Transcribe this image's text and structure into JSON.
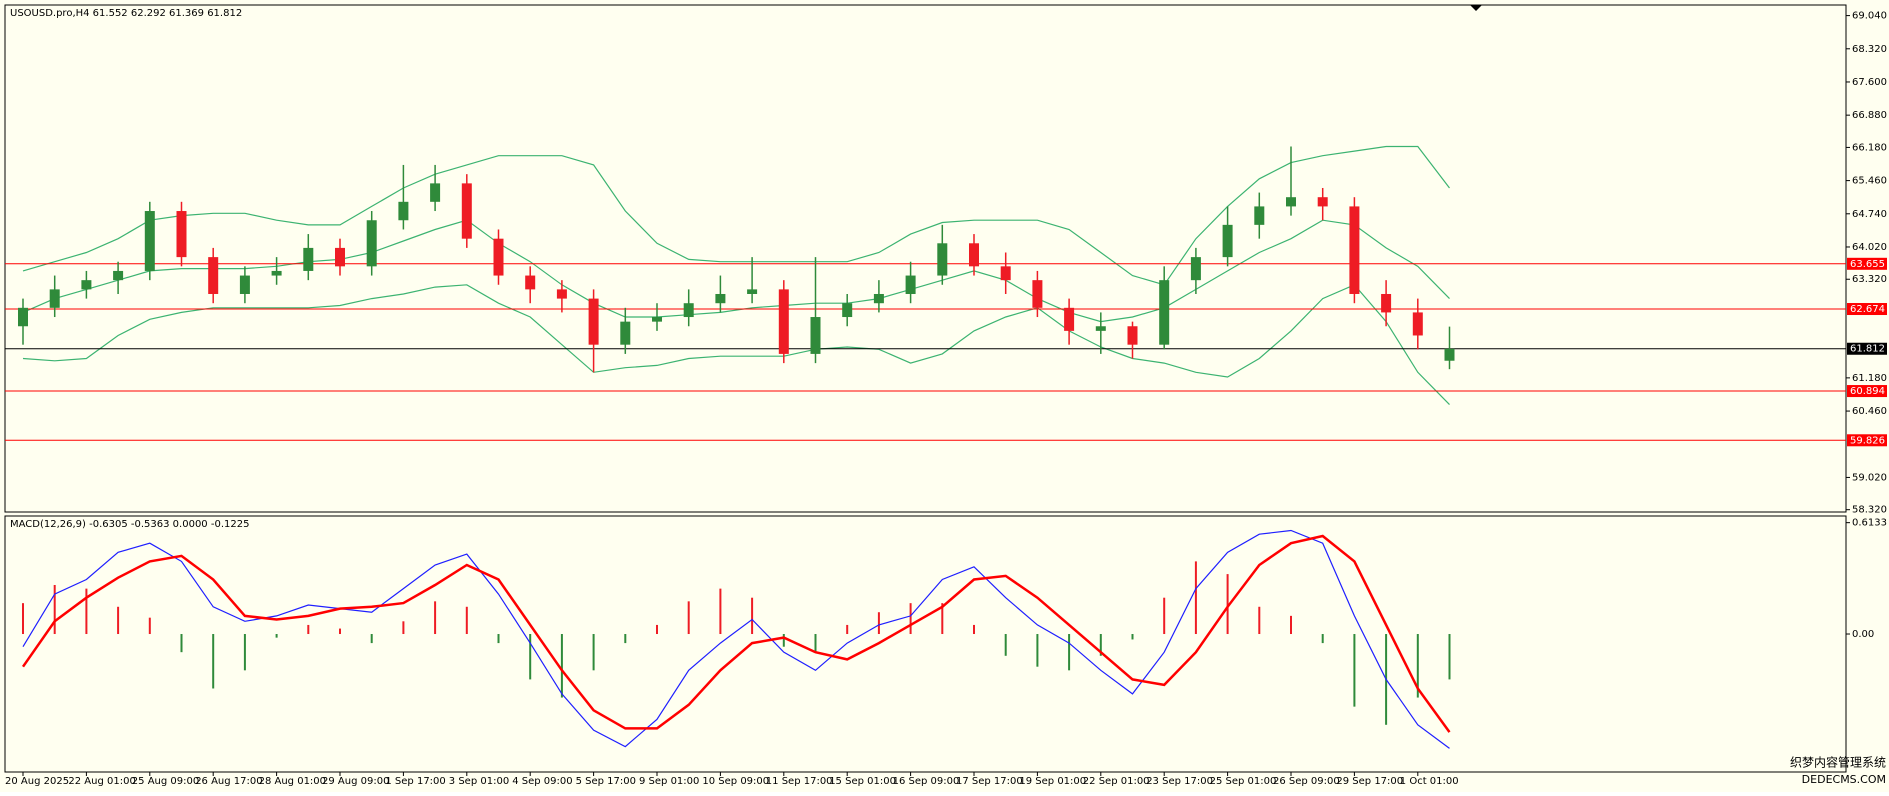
{
  "chart_data": [
    {
      "type": "candlestick",
      "title": "USOUSD.pro,H4  61.552 62.292 61.369 61.812",
      "categories": [
        "20 Aug 2025",
        null,
        "22 Aug 01:00",
        null,
        "25 Aug 09:00",
        null,
        "26 Aug 17:00",
        null,
        "28 Aug 01:00",
        null,
        "29 Aug 09:00",
        null,
        "1 Sep 17:00",
        null,
        "3 Sep 01:00",
        null,
        "4 Sep 09:00",
        null,
        "5 Sep 17:00",
        null,
        "9 Sep 01:00",
        null,
        "10 Sep 09:00",
        null,
        "11 Sep 17:00",
        null,
        "15 Sep 01:00",
        null,
        "16 Sep 09:00",
        null,
        "17 Sep 17:00",
        null,
        "19 Sep 01:00",
        null,
        "22 Sep 01:00",
        null,
        "23 Sep 17:00",
        null,
        "25 Sep 01:00",
        null,
        "26 Sep 09:00",
        null,
        "29 Sep 17:00",
        null,
        "1 Oct 01:00",
        null
      ],
      "open": [
        62.3,
        62.7,
        63.1,
        63.3,
        63.5,
        64.8,
        63.8,
        63.0,
        63.4,
        63.5,
        64.0,
        63.6,
        64.6,
        65.0,
        65.4,
        64.2,
        63.4,
        63.1,
        62.9,
        61.9,
        62.4,
        62.5,
        62.8,
        63.0,
        63.1,
        61.7,
        62.5,
        62.8,
        63.0,
        63.4,
        64.1,
        63.6,
        63.3,
        62.7,
        62.2,
        62.3,
        61.9,
        63.3,
        63.8,
        64.5,
        64.9,
        65.1,
        64.9,
        63.0,
        62.6,
        61.552
      ],
      "high": [
        62.9,
        63.4,
        63.5,
        63.7,
        65.0,
        65.0,
        64.0,
        63.6,
        63.8,
        64.3,
        64.2,
        64.8,
        65.8,
        65.8,
        65.6,
        64.4,
        63.6,
        63.3,
        63.1,
        62.7,
        62.8,
        63.1,
        63.4,
        63.8,
        63.3,
        63.8,
        63.0,
        63.3,
        63.7,
        64.5,
        64.3,
        63.9,
        63.5,
        62.9,
        62.6,
        62.4,
        63.6,
        64.0,
        64.9,
        65.2,
        66.2,
        65.3,
        65.1,
        63.3,
        62.9,
        62.292
      ],
      "low": [
        61.9,
        62.5,
        62.9,
        63.0,
        63.3,
        63.6,
        62.8,
        62.8,
        63.2,
        63.3,
        63.4,
        63.4,
        64.4,
        64.8,
        64.0,
        63.2,
        62.8,
        62.6,
        61.3,
        61.7,
        62.2,
        62.3,
        62.6,
        62.8,
        61.5,
        61.5,
        62.3,
        62.6,
        62.8,
        63.2,
        63.4,
        63.0,
        62.5,
        61.9,
        61.7,
        61.6,
        61.8,
        63.0,
        63.6,
        64.2,
        64.7,
        64.6,
        62.8,
        62.3,
        61.8,
        61.369
      ],
      "close": [
        62.7,
        63.1,
        63.3,
        63.5,
        64.8,
        63.8,
        63.0,
        63.4,
        63.5,
        64.0,
        63.6,
        64.6,
        65.0,
        65.4,
        64.2,
        63.4,
        63.1,
        62.9,
        61.9,
        62.4,
        62.5,
        62.8,
        63.0,
        63.1,
        61.7,
        62.5,
        62.8,
        63.0,
        63.4,
        64.1,
        63.6,
        63.3,
        62.7,
        62.2,
        62.3,
        61.9,
        63.3,
        63.8,
        64.5,
        64.9,
        65.1,
        64.9,
        63.0,
        62.6,
        62.1,
        61.812
      ],
      "up_color": "#2f8a3a",
      "down_color": "#ee1c24",
      "lines": [
        {
          "color": "#3cb371",
          "values": [
            63.5,
            63.7,
            63.9,
            64.2,
            64.6,
            64.7,
            64.75,
            64.75,
            64.6,
            64.5,
            64.5,
            64.9,
            65.3,
            65.6,
            65.8,
            66.0,
            66.0,
            66.0,
            65.8,
            64.8,
            64.1,
            63.75,
            63.7,
            63.7,
            63.7,
            63.7,
            63.7,
            63.9,
            64.3,
            64.55,
            64.6,
            64.6,
            64.6,
            64.4,
            63.9,
            63.4,
            63.2,
            64.2,
            64.9,
            65.5,
            65.85,
            66.0,
            66.1,
            66.2,
            66.2,
            65.3
          ]
        },
        {
          "color": "#3cb371",
          "values": [
            62.6,
            62.9,
            63.1,
            63.3,
            63.5,
            63.55,
            63.55,
            63.55,
            63.6,
            63.7,
            63.75,
            63.9,
            64.15,
            64.4,
            64.6,
            64.1,
            63.7,
            63.2,
            62.8,
            62.5,
            62.5,
            62.55,
            62.6,
            62.7,
            62.75,
            62.8,
            62.8,
            62.9,
            63.1,
            63.3,
            63.5,
            63.3,
            62.9,
            62.6,
            62.4,
            62.5,
            62.7,
            63.1,
            63.5,
            63.9,
            64.2,
            64.6,
            64.5,
            64.0,
            63.6,
            62.9
          ]
        },
        {
          "color": "#3cb371",
          "values": [
            61.6,
            61.55,
            61.6,
            62.1,
            62.45,
            62.6,
            62.7,
            62.7,
            62.7,
            62.7,
            62.75,
            62.9,
            63.0,
            63.15,
            63.2,
            62.8,
            62.5,
            61.9,
            61.3,
            61.4,
            61.45,
            61.6,
            61.65,
            61.65,
            61.65,
            61.8,
            61.85,
            61.8,
            61.5,
            61.7,
            62.2,
            62.5,
            62.7,
            62.2,
            61.85,
            61.6,
            61.5,
            61.3,
            61.2,
            61.6,
            62.2,
            62.9,
            63.2,
            62.4,
            61.3,
            60.6
          ]
        }
      ],
      "hlines": [
        {
          "value": 63.655,
          "color": "#ff0000"
        },
        {
          "value": 62.674,
          "color": "#ff0000"
        },
        {
          "value": 61.812,
          "color": "#000000"
        },
        {
          "value": 60.894,
          "color": "#ff0000"
        },
        {
          "value": 59.826,
          "color": "#ff0000"
        }
      ],
      "ylim": [
        58.27,
        69.27
      ],
      "yticks": [
        {
          "value": 69.04,
          "label": "69.040"
        },
        {
          "value": 68.32,
          "label": "68.320"
        },
        {
          "value": 67.6,
          "label": "67.600"
        },
        {
          "value": 66.88,
          "label": "66.880"
        },
        {
          "value": 66.18,
          "label": "66.180"
        },
        {
          "value": 65.46,
          "label": "65.460"
        },
        {
          "value": 64.74,
          "label": "64.740"
        },
        {
          "value": 64.02,
          "label": "64.020"
        },
        {
          "value": 63.32,
          "label": "63.320"
        },
        {
          "value": 61.18,
          "label": "61.180"
        },
        {
          "value": 60.46,
          "label": "60.460"
        },
        {
          "value": 59.02,
          "label": "59.020"
        },
        {
          "value": 58.32,
          "label": "58.320"
        }
      ]
    },
    {
      "type": "macd",
      "title": "MACD(12,26,9) -0.6305 -0.5363 0.0000 -0.1225",
      "histogram": [
        0.17,
        0.27,
        0.25,
        0.15,
        0.09,
        -0.1,
        -0.3,
        -0.2,
        -0.02,
        0.05,
        0.03,
        -0.05,
        0.07,
        0.18,
        0.15,
        -0.05,
        -0.25,
        -0.35,
        -0.2,
        -0.05,
        0.05,
        0.18,
        0.25,
        0.2,
        -0.07,
        -0.1,
        0.05,
        0.12,
        0.17,
        0.17,
        0.05,
        -0.12,
        -0.18,
        -0.2,
        -0.12,
        -0.03,
        0.2,
        0.4,
        0.33,
        0.15,
        0.1,
        -0.05,
        -0.4,
        -0.5,
        -0.35,
        -0.25
      ],
      "up_color": "#ee1c24",
      "down_color": "#2f8a3a",
      "lines": [
        {
          "color": "#1f1fff",
          "values": [
            -0.07,
            0.22,
            0.3,
            0.45,
            0.5,
            0.4,
            0.15,
            0.07,
            0.1,
            0.16,
            0.14,
            0.12,
            0.25,
            0.38,
            0.44,
            0.22,
            -0.05,
            -0.33,
            -0.53,
            -0.62,
            -0.47,
            -0.2,
            -0.05,
            0.08,
            -0.1,
            -0.2,
            -0.05,
            0.05,
            0.1,
            0.3,
            0.37,
            0.2,
            0.05,
            -0.05,
            -0.2,
            -0.33,
            -0.1,
            0.25,
            0.45,
            0.55,
            0.57,
            0.5,
            0.1,
            -0.25,
            -0.5,
            -0.63
          ]
        },
        {
          "color": "#ff0000",
          "values": [
            -0.18,
            0.07,
            0.2,
            0.31,
            0.4,
            0.43,
            0.3,
            0.1,
            0.08,
            0.1,
            0.14,
            0.15,
            0.17,
            0.27,
            0.38,
            0.3,
            0.05,
            -0.2,
            -0.42,
            -0.52,
            -0.52,
            -0.39,
            -0.2,
            -0.05,
            -0.02,
            -0.1,
            -0.14,
            -0.05,
            0.05,
            0.15,
            0.3,
            0.32,
            0.2,
            0.05,
            -0.1,
            -0.25,
            -0.28,
            -0.1,
            0.15,
            0.38,
            0.5,
            0.54,
            0.4,
            0.05,
            -0.3,
            -0.54
          ]
        }
      ],
      "ylim": [
        -0.76,
        0.65
      ],
      "yticks": [
        0.6133,
        {
          "value": 0,
          "label": "0.00"
        }
      ]
    }
  ],
  "watermark": {
    "title": "织梦内容管理系统",
    "subtitle": "DEDECMS.COM"
  }
}
